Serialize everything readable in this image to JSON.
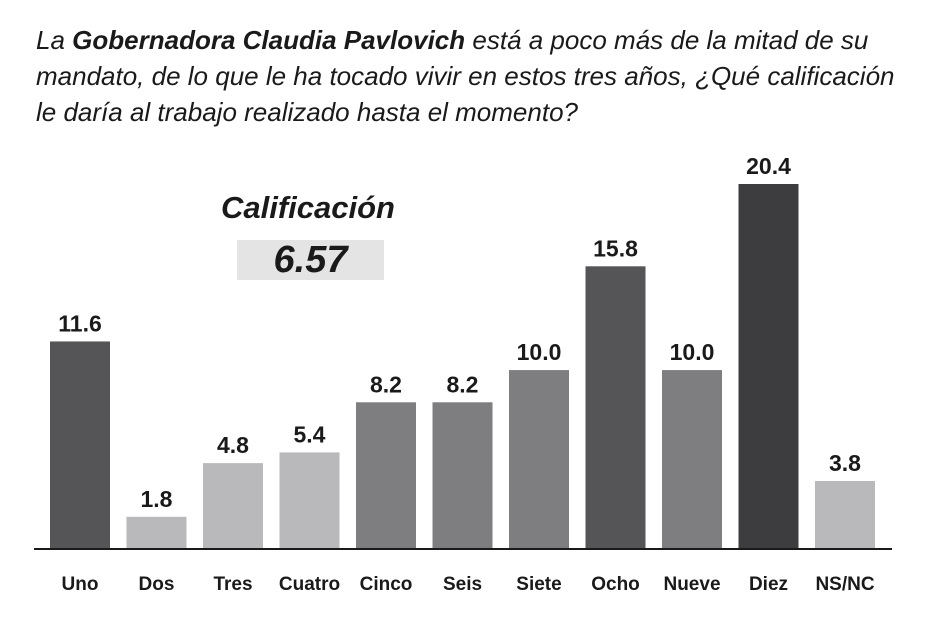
{
  "question": {
    "part1": "La ",
    "bold": "Gobernadora Claudia Pavlovich",
    "part2": " está a poco más de la mitad de su mandato, de lo que le ha tocado vivir en estos tres años, ¿Qué calificación le daría al trabajo realizado hasta el momento?"
  },
  "callout": {
    "title": "Calificación",
    "value": "6.57"
  },
  "chart_data": {
    "type": "bar",
    "categories": [
      "Uno",
      "Dos",
      "Tres",
      "Cuatro",
      "Cinco",
      "Seis",
      "Siete",
      "Ocho",
      "Nueve",
      "Diez",
      "NS/NC"
    ],
    "values": [
      11.6,
      1.8,
      4.8,
      5.4,
      8.2,
      8.2,
      10.0,
      15.8,
      10.0,
      20.4,
      3.8
    ],
    "value_labels": [
      "11.6",
      "1.8",
      "4.8",
      "5.4",
      "8.2",
      "8.2",
      "10.0",
      "15.8",
      "10.0",
      "20.4",
      "3.8"
    ],
    "colors": [
      "#555558",
      "#b9b9bc",
      "#b9b9bc",
      "#b9b9bc",
      "#7e7e81",
      "#7e7e81",
      "#7e7e81",
      "#555558",
      "#7e7e81",
      "#3d3d40",
      "#b9b9bc"
    ],
    "axis_color": "#1a1a1a",
    "title": "",
    "xlabel": "",
    "ylabel": "",
    "grid": false
  }
}
